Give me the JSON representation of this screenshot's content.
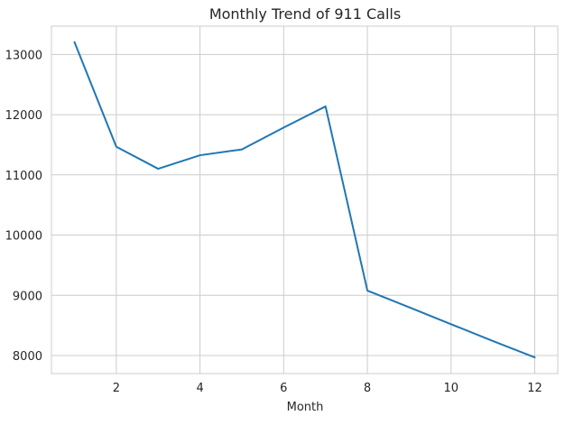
{
  "chart_data": {
    "type": "line",
    "title": "Monthly Trend of 911 Calls",
    "xlabel": "Month",
    "ylabel": "",
    "x": [
      1,
      2,
      3,
      4,
      5,
      6,
      7,
      8,
      9,
      10,
      11,
      12
    ],
    "series": [
      {
        "values": [
          13205,
          11467,
          11101,
          11326,
          11423,
          11786,
          12137,
          9078,
          8800,
          8520,
          8240,
          7969
        ]
      }
    ],
    "xticks": [
      2,
      4,
      6,
      8,
      10,
      12
    ],
    "yticks": [
      8000,
      9000,
      10000,
      11000,
      12000,
      13000
    ],
    "xlim": [
      0.45,
      12.55
    ],
    "ylim": [
      7700,
      13470
    ],
    "grid": true,
    "colors": {
      "line": "#1f77b4",
      "grid": "#cccccc",
      "spine": "#cccccc",
      "text": "#262626"
    }
  }
}
